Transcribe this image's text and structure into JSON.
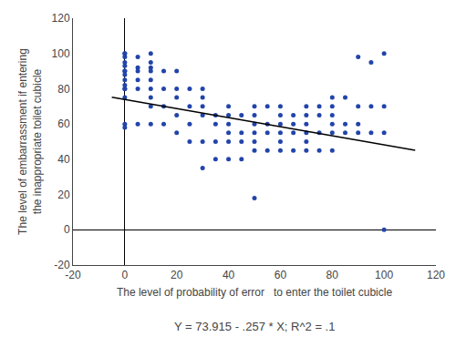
{
  "chart_data": {
    "type": "scatter",
    "xlabel": "The level of probability of error   to enter the toilet cubicle",
    "ylabel": "The level of embarrassment if entering\nthe inappropriate toilet cubicle",
    "series": [
      {
        "type": "scatter",
        "color": "#2244aa",
        "marker": "circle",
        "x": [
          0,
          0,
          0,
          0,
          0,
          0,
          0,
          0,
          0,
          0,
          0,
          0,
          0,
          0,
          0,
          5,
          5,
          5,
          5,
          5,
          5,
          10,
          10,
          10,
          10,
          10,
          10,
          10,
          10,
          10,
          15,
          15,
          15,
          15,
          20,
          20,
          20,
          20,
          20,
          25,
          25,
          25,
          25,
          30,
          30,
          30,
          30,
          30,
          30,
          35,
          35,
          35,
          35,
          40,
          40,
          40,
          40,
          40,
          40,
          45,
          45,
          45,
          45,
          50,
          50,
          50,
          50,
          50,
          50,
          50,
          55,
          55,
          55,
          55,
          60,
          60,
          60,
          60,
          60,
          60,
          65,
          65,
          65,
          65,
          70,
          70,
          70,
          70,
          70,
          70,
          75,
          75,
          75,
          75,
          80,
          80,
          80,
          80,
          80,
          80,
          85,
          85,
          85,
          90,
          90,
          90,
          90,
          95,
          95,
          95,
          100,
          100,
          100,
          100
        ],
        "values": [
          100,
          100,
          98,
          95,
          93,
          90,
          90,
          88,
          85,
          82,
          80,
          80,
          75,
          60,
          58,
          98,
          92,
          90,
          85,
          80,
          60,
          100,
          95,
          92,
          90,
          85,
          80,
          75,
          70,
          60,
          90,
          80,
          70,
          60,
          90,
          80,
          75,
          65,
          55,
          80,
          70,
          60,
          50,
          80,
          75,
          70,
          65,
          50,
          35,
          65,
          60,
          50,
          40,
          70,
          65,
          60,
          55,
          50,
          40,
          65,
          55,
          50,
          40,
          70,
          65,
          60,
          55,
          50,
          45,
          18,
          70,
          60,
          55,
          45,
          70,
          65,
          60,
          55,
          50,
          45,
          65,
          60,
          55,
          45,
          70,
          65,
          60,
          55,
          50,
          45,
          70,
          65,
          55,
          45,
          75,
          70,
          65,
          60,
          55,
          45,
          75,
          60,
          55,
          98,
          70,
          60,
          55,
          95,
          70,
          55,
          100,
          70,
          55,
          0
        ]
      },
      {
        "type": "line",
        "color": "#000000",
        "line_style": "solid",
        "x": [
          -5,
          112
        ],
        "values": [
          75.2,
          45.131
        ]
      }
    ],
    "xlim": [
      -20,
      120
    ],
    "ylim": [
      -20,
      120
    ],
    "xticks": [
      -20,
      0,
      20,
      40,
      60,
      80,
      100,
      120
    ],
    "yticks": [
      -20,
      0,
      20,
      40,
      60,
      80,
      100,
      120
    ],
    "annotations": [
      "Y = 73.915 - .257 * X; R^2 = .1"
    ],
    "grid": false
  }
}
